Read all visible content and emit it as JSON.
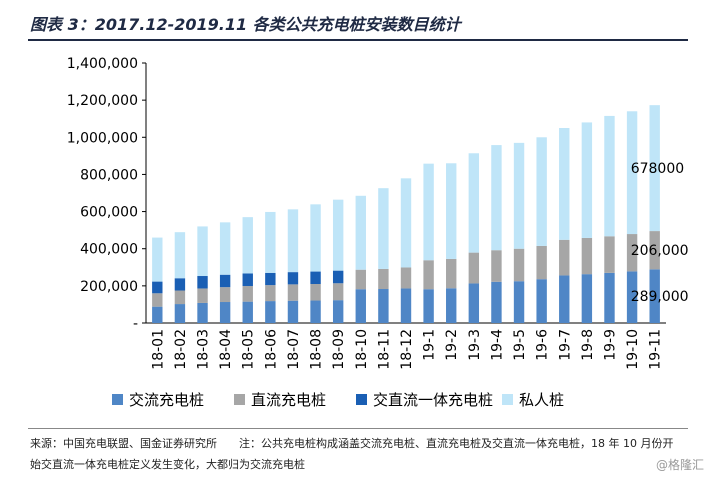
{
  "title": "图表 3：2017.12-2019.11 各类公共充电桩安装数目统计",
  "note": {
    "source": "来源：中国充电联盟、国金证券研究所",
    "remark": "注：公共充电桩构成涵盖交流充电桩、直流充电桩及交直流一体充电桩，18 年 10 月份开始交直流一体充电桩定义发生变化，大都归为交流充电桩"
  },
  "watermark": "@格隆汇",
  "chart_data": {
    "type": "bar",
    "stacked": true,
    "categories": [
      "18-01",
      "18-02",
      "18-03",
      "18-04",
      "18-05",
      "18-06",
      "18-07",
      "18-08",
      "18-09",
      "18-10",
      "18-11",
      "18-12",
      "19-1",
      "19-2",
      "19-3",
      "19-4",
      "19-5",
      "19-6",
      "19-7",
      "19-8",
      "19-9",
      "19-10",
      "19-11"
    ],
    "ylim": [
      0,
      1400000
    ],
    "yticks": [
      0,
      200000,
      400000,
      600000,
      800000,
      1000000,
      1200000,
      1400000
    ],
    "ytick_labels": [
      "-",
      "200,000",
      "400,000",
      "600,000",
      "800,000",
      "1,000,000",
      "1,200,000",
      "1,400,000"
    ],
    "grid": false,
    "legend_position": "bottom",
    "series": [
      {
        "name": "交流充电桩",
        "color": "#4f86c6",
        "values": [
          88000,
          102000,
          108000,
          113000,
          115000,
          118000,
          120000,
          121000,
          123000,
          182000,
          183000,
          186000,
          182000,
          187000,
          213000,
          222000,
          225000,
          236000,
          256000,
          263000,
          270000,
          278000,
          289000
        ]
      },
      {
        "name": "直流充电桩",
        "color": "#a6a6a6",
        "values": [
          72000,
          73000,
          78000,
          80000,
          84000,
          86000,
          88000,
          89000,
          91000,
          105000,
          108000,
          113000,
          156000,
          158000,
          166000,
          170000,
          175000,
          179000,
          192000,
          195000,
          197000,
          201000,
          206000
        ]
      },
      {
        "name": "交直流一体充电桩",
        "color": "#1a5fb4",
        "values": [
          63000,
          66000,
          67000,
          67000,
          68000,
          66000,
          66000,
          67000,
          68000,
          0,
          0,
          0,
          0,
          0,
          0,
          0,
          0,
          0,
          0,
          0,
          0,
          0,
          0
        ]
      },
      {
        "name": "私人桩",
        "color": "#bfe5f8",
        "values": [
          237000,
          248000,
          267000,
          282000,
          303000,
          328000,
          338000,
          362000,
          382000,
          398000,
          435000,
          480000,
          520000,
          515000,
          535000,
          566000,
          570000,
          585000,
          602000,
          622000,
          648000,
          661000,
          678000
        ]
      }
    ],
    "annotations": [
      {
        "label": "678000",
        "category": "19-11",
        "series": "私人桩"
      },
      {
        "label": "206,000",
        "category": "19-11",
        "series": "直流充电桩"
      },
      {
        "label": "289,000",
        "category": "19-11",
        "series": "交流充电桩"
      }
    ]
  }
}
